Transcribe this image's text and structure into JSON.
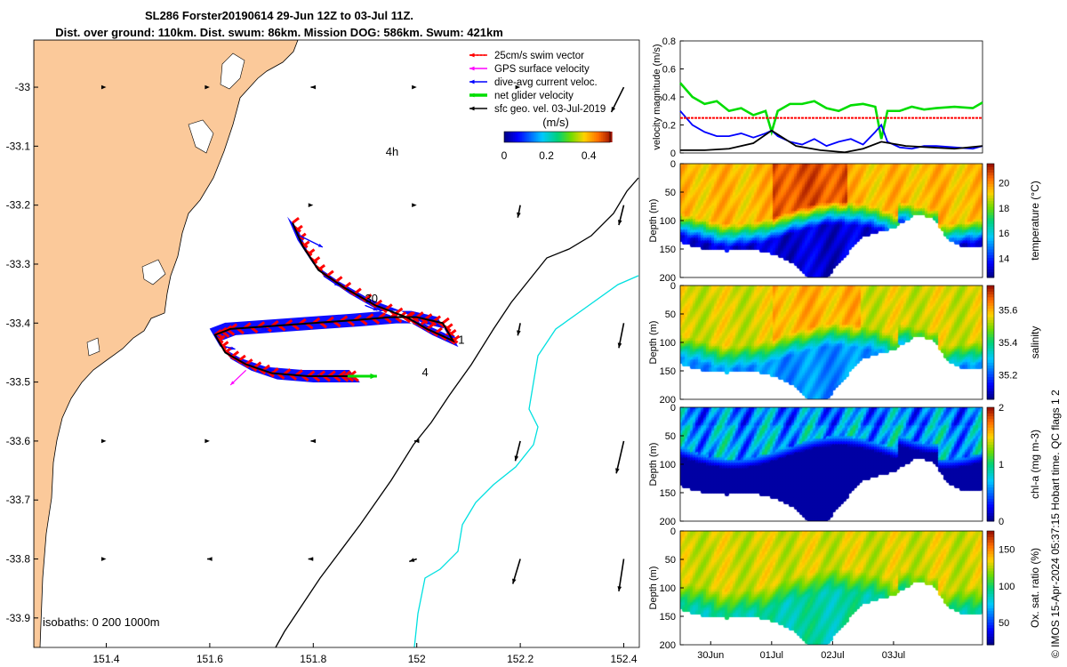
{
  "title": {
    "line1": "SL286 Forster20190614 29-Jun 12Z to 03-Jul 11Z.",
    "line2": "Dist. over ground: 110km. Dist. swum: 86km. Mission DOG: 586km. Swum: 421km"
  },
  "side_note": "© IMOS 15-Apr-2024 05:37:15 Hobart time. QC flags 1  2",
  "colors": {
    "land": "#fbc99a",
    "swim": "#ff0000",
    "gps": "#ff00ff",
    "dive": "#0000ff",
    "net": "#00dd00",
    "geo": "#000000",
    "isobath_200": "#000000",
    "isobath_1000": "#00e0e0"
  },
  "chart_data": [
    {
      "type": "map",
      "x_ticks": [
        "151.4",
        "151.6",
        "151.8",
        "152",
        "152.2",
        "152.4"
      ],
      "y_ticks": [
        "-33",
        "-33.1",
        "-33.2",
        "-33.3",
        "-33.4",
        "-33.5",
        "-33.6",
        "-33.7",
        "-33.8",
        "-33.9"
      ],
      "xlim": [
        151.26,
        152.43
      ],
      "ylim": [
        -33.95,
        -32.92
      ],
      "legend": {
        "placement": "top-right",
        "entries": [
          "25cm/s swim vector",
          "GPS surface velocity",
          "dive-avg current veloc.",
          "net glider velocity",
          "sfc geo. vel. 03-Jul-2019"
        ]
      },
      "colorbar": {
        "label": "(m/s)",
        "ticks": [
          "0",
          "0.2",
          "0.4"
        ],
        "range": [
          0,
          0.5
        ]
      },
      "isobaths_label": "isobaths: 0   200  1000m",
      "annotations": [
        {
          "text": "4h",
          "lon": 151.94,
          "lat": -33.116
        },
        {
          "text": "30",
          "lon": 151.9,
          "lat": -33.365
        },
        {
          "text": "1",
          "lon": 152.08,
          "lat": -33.435
        },
        {
          "text": "4",
          "lon": 152.01,
          "lat": -33.49
        }
      ],
      "track": [
        [
          151.76,
          -33.23
        ],
        [
          151.78,
          -33.27
        ],
        [
          151.81,
          -33.31
        ],
        [
          151.86,
          -33.34
        ],
        [
          151.92,
          -33.37
        ],
        [
          151.98,
          -33.39
        ],
        [
          152.02,
          -33.41
        ],
        [
          152.07,
          -33.43
        ],
        [
          152.05,
          -33.4
        ],
        [
          152.0,
          -33.39
        ],
        [
          151.95,
          -33.39
        ],
        [
          151.88,
          -33.395
        ],
        [
          151.8,
          -33.4
        ],
        [
          151.72,
          -33.405
        ],
        [
          151.64,
          -33.41
        ],
        [
          151.61,
          -33.42
        ],
        [
          151.63,
          -33.45
        ],
        [
          151.67,
          -33.47
        ],
        [
          151.72,
          -33.485
        ],
        [
          151.79,
          -33.49
        ],
        [
          151.85,
          -33.49
        ],
        [
          151.88,
          -33.49
        ]
      ],
      "dive_currents": [
        [
          151.77,
          -33.25,
          0.1,
          -0.05
        ],
        [
          151.82,
          -33.32,
          0.06,
          -0.04
        ],
        [
          151.9,
          -33.37,
          0.05,
          -0.02
        ],
        [
          151.98,
          -33.39,
          0.06,
          -0.03
        ],
        [
          152.05,
          -33.42,
          0.05,
          -0.01
        ],
        [
          151.95,
          -33.39,
          0.03,
          0.0
        ],
        [
          151.82,
          -33.4,
          0.04,
          0.0
        ],
        [
          151.7,
          -33.41,
          0.03,
          0.0
        ],
        [
          151.63,
          -33.44,
          0.04,
          -0.01
        ],
        [
          151.7,
          -33.48,
          0.05,
          0.0
        ],
        [
          151.8,
          -33.49,
          0.04,
          0.0
        ]
      ],
      "geo_vectors": [
        [
          151.4,
          -33.0,
          0.0,
          -0.0
        ],
        [
          151.6,
          -33.0,
          0.0,
          -0.0
        ],
        [
          151.8,
          -33.0,
          -0.01,
          0.0
        ],
        [
          152.0,
          -33.0,
          0.0,
          -0.0
        ],
        [
          152.2,
          -33.0,
          0.0,
          0.0
        ],
        [
          152.4,
          -33.0,
          -0.05,
          -0.1
        ],
        [
          151.8,
          -33.2,
          0.0,
          -0.0
        ],
        [
          152.0,
          -33.2,
          0.0,
          -0.0
        ],
        [
          152.2,
          -33.2,
          -0.01,
          -0.05
        ],
        [
          152.4,
          -33.2,
          -0.02,
          -0.08
        ],
        [
          152.2,
          -33.4,
          -0.01,
          -0.05
        ],
        [
          152.4,
          -33.4,
          -0.02,
          -0.1
        ],
        [
          151.4,
          -33.6,
          0.0,
          -0.0
        ],
        [
          151.6,
          -33.6,
          0.0,
          -0.0
        ],
        [
          151.8,
          -33.6,
          -0.01,
          0.0
        ],
        [
          152.0,
          -33.6,
          -0.01,
          -0.0
        ],
        [
          152.2,
          -33.6,
          -0.02,
          -0.08
        ],
        [
          152.4,
          -33.6,
          -0.03,
          -0.13
        ],
        [
          151.4,
          -33.8,
          -0.0,
          -0.0
        ],
        [
          151.6,
          -33.8,
          -0.01,
          0.0
        ],
        [
          151.8,
          -33.8,
          -0.02,
          0.0
        ],
        [
          152.0,
          -33.8,
          -0.03,
          -0.01
        ],
        [
          152.2,
          -33.8,
          -0.03,
          -0.1
        ],
        [
          152.4,
          -33.8,
          -0.02,
          -0.13
        ]
      ]
    },
    {
      "type": "line",
      "ylabel": "velocity magnitude (m/s)",
      "ylim": [
        0,
        0.8
      ],
      "y_ticks": [
        "0",
        "0.2",
        "0.4",
        "0.6",
        "0.8"
      ],
      "x_domain_days": [
        29.5,
        34.46
      ],
      "series": [
        {
          "color": "#00dd00",
          "values": [
            [
              29.5,
              0.5
            ],
            [
              29.7,
              0.4
            ],
            [
              29.9,
              0.35
            ],
            [
              30.1,
              0.37
            ],
            [
              30.3,
              0.3
            ],
            [
              30.5,
              0.32
            ],
            [
              30.7,
              0.27
            ],
            [
              30.9,
              0.3
            ],
            [
              31.0,
              0.15
            ],
            [
              31.1,
              0.3
            ],
            [
              31.3,
              0.35
            ],
            [
              31.5,
              0.35
            ],
            [
              31.7,
              0.37
            ],
            [
              31.9,
              0.32
            ],
            [
              32.1,
              0.3
            ],
            [
              32.3,
              0.34
            ],
            [
              32.5,
              0.35
            ],
            [
              32.7,
              0.33
            ],
            [
              32.8,
              0.1
            ],
            [
              32.9,
              0.3
            ],
            [
              33.1,
              0.3
            ],
            [
              33.3,
              0.33
            ],
            [
              33.5,
              0.31
            ],
            [
              33.7,
              0.32
            ],
            [
              34.0,
              0.33
            ],
            [
              34.3,
              0.32
            ],
            [
              34.46,
              0.36
            ]
          ]
        },
        {
          "color": "#0000ff",
          "values": [
            [
              29.5,
              0.3
            ],
            [
              29.7,
              0.2
            ],
            [
              29.9,
              0.15
            ],
            [
              30.1,
              0.12
            ],
            [
              30.3,
              0.12
            ],
            [
              30.5,
              0.14
            ],
            [
              30.7,
              0.11
            ],
            [
              30.9,
              0.14
            ],
            [
              31.0,
              0.16
            ],
            [
              31.1,
              0.12
            ],
            [
              31.3,
              0.08
            ],
            [
              31.5,
              0.06
            ],
            [
              31.7,
              0.1
            ],
            [
              31.9,
              0.05
            ],
            [
              32.1,
              0.08
            ],
            [
              32.3,
              0.1
            ],
            [
              32.5,
              0.06
            ],
            [
              32.7,
              0.15
            ],
            [
              32.8,
              0.2
            ],
            [
              32.9,
              0.08
            ],
            [
              33.1,
              0.04
            ],
            [
              33.3,
              0.03
            ],
            [
              33.5,
              0.05
            ],
            [
              33.7,
              0.05
            ],
            [
              34.0,
              0.04
            ],
            [
              34.3,
              0.03
            ],
            [
              34.46,
              0.05
            ]
          ]
        },
        {
          "color": "#ff0000",
          "values": [
            [
              29.5,
              0.25
            ],
            [
              34.46,
              0.25
            ]
          ]
        },
        {
          "color": "#000000",
          "values": [
            [
              29.5,
              0.02
            ],
            [
              29.9,
              0.02
            ],
            [
              30.3,
              0.03
            ],
            [
              30.7,
              0.07
            ],
            [
              31.0,
              0.16
            ],
            [
              31.4,
              0.05
            ],
            [
              31.8,
              0.02
            ],
            [
              32.2,
              0.005
            ],
            [
              32.5,
              0.03
            ],
            [
              32.8,
              0.08
            ],
            [
              33.2,
              0.05
            ],
            [
              33.6,
              0.04
            ],
            [
              34.0,
              0.03
            ],
            [
              34.46,
              0.05
            ]
          ]
        }
      ]
    },
    {
      "type": "heatmap",
      "name": "temperature",
      "ylabel": "Depth (m)",
      "ylim": [
        0,
        200
      ],
      "y_ticks": [
        "0",
        "50",
        "100",
        "150",
        "200"
      ],
      "colorbar_label": "temperature (°C)",
      "colorbar_ticks": [
        "14",
        "16",
        "18",
        "20"
      ],
      "colorbar_range": [
        12.5,
        21.5
      ],
      "mid_value": 19.5,
      "deep_value": 13.2
    },
    {
      "type": "heatmap",
      "name": "salinity",
      "ylabel": "Depth (m)",
      "ylim": [
        0,
        200
      ],
      "y_ticks": [
        "0",
        "50",
        "100",
        "150",
        "200"
      ],
      "colorbar_label": "salinity",
      "colorbar_ticks": [
        "35.2",
        "35.4",
        "35.6"
      ],
      "colorbar_range": [
        35.05,
        35.75
      ],
      "mid_value": 35.55,
      "deep_value": 35.25
    },
    {
      "type": "heatmap",
      "name": "chl-a",
      "ylabel": "Depth (m)",
      "ylim": [
        0,
        200
      ],
      "y_ticks": [
        "0",
        "50",
        "100",
        "150",
        "200"
      ],
      "colorbar_label": "chl-a (mg m-3)",
      "colorbar_ticks": [
        "0",
        "1",
        "2"
      ],
      "colorbar_range": [
        0,
        2
      ],
      "mid_value": 0.65,
      "deep_value": 0.05
    },
    {
      "type": "heatmap",
      "name": "oxygen",
      "ylabel": "Depth (m)",
      "ylim": [
        0,
        200
      ],
      "y_ticks": [
        "0",
        "50",
        "100",
        "150",
        "200"
      ],
      "x_ticks": [
        "30Jun",
        "01Jul",
        "02Jul",
        "03Jul"
      ],
      "colorbar_label": "Ox. sat. ratio (%)",
      "colorbar_ticks": [
        "50",
        "100",
        "150"
      ],
      "colorbar_range": [
        20,
        175
      ],
      "mid_value": 130,
      "deep_value": 90
    }
  ]
}
